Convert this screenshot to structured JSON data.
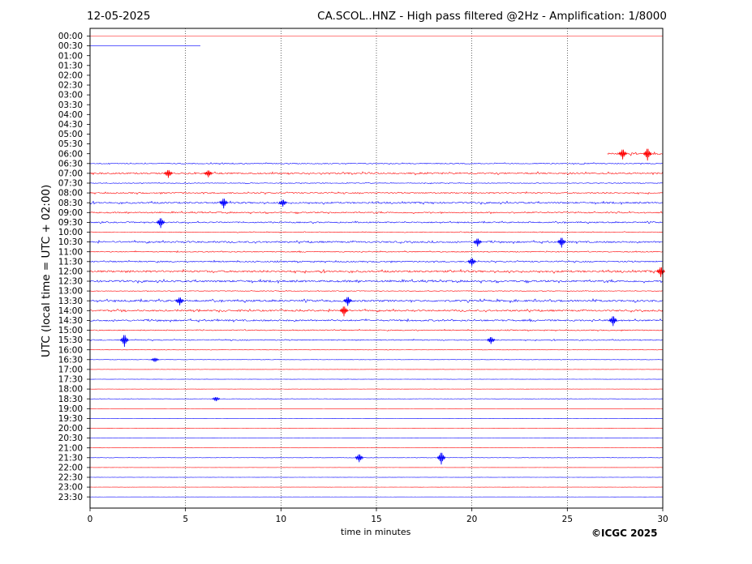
{
  "header": {
    "date": "12-05-2025",
    "title": "CA.SCOL..HNZ - High pass filtered @2Hz - Amplification: 1/8000"
  },
  "footer": {
    "copyright": "©ICGC 2025"
  },
  "colors": {
    "trace_a": "#ff0000",
    "trace_b": "#0000ff",
    "grid": "#000000"
  },
  "chart_data": {
    "type": "line",
    "title": "CA.SCOL..HNZ - High pass filtered @2Hz - Amplification: 1/8000",
    "xlabel": "time in minutes",
    "ylabel": "UTC (local time = UTC + 02:00)",
    "xlim": [
      0,
      30
    ],
    "x_ticks": [
      0,
      5,
      10,
      15,
      20,
      25,
      30
    ],
    "vertical_grid_minutes": [
      5,
      10,
      15,
      20,
      25
    ],
    "rows": [
      {
        "label": "00:00",
        "color": "red",
        "start": 0,
        "end": 30,
        "level": 0.0
      },
      {
        "label": "00:30",
        "color": "blue",
        "start": 0,
        "end": 5.8,
        "level": 0.0
      },
      {
        "label": "01:00",
        "color": "red",
        "start": null,
        "end": null,
        "level": 0
      },
      {
        "label": "01:30",
        "color": "blue",
        "start": null,
        "end": null,
        "level": 0
      },
      {
        "label": "02:00",
        "color": "red",
        "start": null,
        "end": null,
        "level": 0
      },
      {
        "label": "02:30",
        "color": "blue",
        "start": null,
        "end": null,
        "level": 0
      },
      {
        "label": "03:00",
        "color": "red",
        "start": null,
        "end": null,
        "level": 0
      },
      {
        "label": "03:30",
        "color": "blue",
        "start": null,
        "end": null,
        "level": 0
      },
      {
        "label": "04:00",
        "color": "red",
        "start": null,
        "end": null,
        "level": 0
      },
      {
        "label": "04:30",
        "color": "blue",
        "start": null,
        "end": null,
        "level": 0
      },
      {
        "label": "05:00",
        "color": "red",
        "start": null,
        "end": null,
        "level": 0
      },
      {
        "label": "05:30",
        "color": "blue",
        "start": null,
        "end": null,
        "level": 0
      },
      {
        "label": "06:00",
        "color": "red",
        "start": 27.1,
        "end": 30,
        "level": 0.6
      },
      {
        "label": "06:30",
        "color": "blue",
        "start": 0,
        "end": 30,
        "level": 0.3
      },
      {
        "label": "07:00",
        "color": "red",
        "start": 0,
        "end": 30,
        "level": 0.5
      },
      {
        "label": "07:30",
        "color": "blue",
        "start": 0,
        "end": 30,
        "level": 0.2
      },
      {
        "label": "08:00",
        "color": "red",
        "start": 0,
        "end": 30,
        "level": 0.4
      },
      {
        "label": "08:30",
        "color": "blue",
        "start": 0,
        "end": 30,
        "level": 0.5
      },
      {
        "label": "09:00",
        "color": "red",
        "start": 0,
        "end": 30,
        "level": 0.4
      },
      {
        "label": "09:30",
        "color": "blue",
        "start": 0,
        "end": 30,
        "level": 0.4
      },
      {
        "label": "10:00",
        "color": "red",
        "start": 0,
        "end": 30,
        "level": 0.2
      },
      {
        "label": "10:30",
        "color": "blue",
        "start": 0,
        "end": 30,
        "level": 0.5
      },
      {
        "label": "11:00",
        "color": "red",
        "start": 0,
        "end": 30,
        "level": 0.3
      },
      {
        "label": "11:30",
        "color": "blue",
        "start": 0,
        "end": 30,
        "level": 0.4
      },
      {
        "label": "12:00",
        "color": "red",
        "start": 0,
        "end": 30,
        "level": 0.6
      },
      {
        "label": "12:30",
        "color": "blue",
        "start": 0,
        "end": 30,
        "level": 0.6
      },
      {
        "label": "13:00",
        "color": "red",
        "start": 0,
        "end": 30,
        "level": 0.2
      },
      {
        "label": "13:30",
        "color": "blue",
        "start": 0,
        "end": 30,
        "level": 0.6
      },
      {
        "label": "14:00",
        "color": "red",
        "start": 0,
        "end": 30,
        "level": 0.5
      },
      {
        "label": "14:30",
        "color": "blue",
        "start": 0,
        "end": 30,
        "level": 0.5
      },
      {
        "label": "15:00",
        "color": "red",
        "start": 0,
        "end": 30,
        "level": 0.3
      },
      {
        "label": "15:30",
        "color": "blue",
        "start": 0,
        "end": 30,
        "level": 0.3
      },
      {
        "label": "16:00",
        "color": "red",
        "start": 0,
        "end": 30,
        "level": 0.1
      },
      {
        "label": "16:30",
        "color": "blue",
        "start": 0,
        "end": 30,
        "level": 0.1
      },
      {
        "label": "17:00",
        "color": "red",
        "start": 0,
        "end": 30,
        "level": 0.05
      },
      {
        "label": "17:30",
        "color": "blue",
        "start": 0,
        "end": 30,
        "level": 0.05
      },
      {
        "label": "18:00",
        "color": "red",
        "start": 0,
        "end": 30,
        "level": 0.05
      },
      {
        "label": "18:30",
        "color": "blue",
        "start": 0,
        "end": 30,
        "level": 0.1
      },
      {
        "label": "19:00",
        "color": "red",
        "start": 0,
        "end": 30,
        "level": 0.03
      },
      {
        "label": "19:30",
        "color": "blue",
        "start": 0,
        "end": 30,
        "level": 0.03
      },
      {
        "label": "20:00",
        "color": "red",
        "start": 0,
        "end": 30,
        "level": 0.03
      },
      {
        "label": "20:30",
        "color": "blue",
        "start": 0,
        "end": 30,
        "level": 0.03
      },
      {
        "label": "21:00",
        "color": "red",
        "start": 0,
        "end": 30,
        "level": 0.03
      },
      {
        "label": "21:30",
        "color": "blue",
        "start": 0,
        "end": 30,
        "level": 0.1
      },
      {
        "label": "22:00",
        "color": "red",
        "start": 0,
        "end": 30,
        "level": 0.03
      },
      {
        "label": "22:30",
        "color": "blue",
        "start": 0,
        "end": 30,
        "level": 0.03
      },
      {
        "label": "23:00",
        "color": "red",
        "start": 0,
        "end": 30,
        "level": 0.03
      },
      {
        "label": "23:30",
        "color": "blue",
        "start": 0,
        "end": 30,
        "level": 0.03
      }
    ],
    "events": [
      {
        "row": "06:00",
        "minute": 27.9,
        "amp": 1.0
      },
      {
        "row": "06:00",
        "minute": 29.2,
        "amp": 1.2
      },
      {
        "row": "07:00",
        "minute": 4.1,
        "amp": 0.8
      },
      {
        "row": "07:00",
        "minute": 6.2,
        "amp": 0.7
      },
      {
        "row": "08:30",
        "minute": 7.0,
        "amp": 1.0
      },
      {
        "row": "08:30",
        "minute": 10.1,
        "amp": 0.7
      },
      {
        "row": "09:30",
        "minute": 3.7,
        "amp": 1.0
      },
      {
        "row": "10:30",
        "minute": 20.3,
        "amp": 0.8
      },
      {
        "row": "10:30",
        "minute": 24.7,
        "amp": 1.0
      },
      {
        "row": "11:30",
        "minute": 20.0,
        "amp": 0.8
      },
      {
        "row": "12:00",
        "minute": 29.9,
        "amp": 1.0
      },
      {
        "row": "13:30",
        "minute": 4.7,
        "amp": 0.8
      },
      {
        "row": "13:30",
        "minute": 13.5,
        "amp": 0.9
      },
      {
        "row": "14:00",
        "minute": 13.3,
        "amp": 1.0
      },
      {
        "row": "14:30",
        "minute": 27.4,
        "amp": 1.0
      },
      {
        "row": "15:30",
        "minute": 1.8,
        "amp": 1.2
      },
      {
        "row": "15:30",
        "minute": 21.0,
        "amp": 0.7
      },
      {
        "row": "16:30",
        "minute": 3.4,
        "amp": 0.4
      },
      {
        "row": "18:30",
        "minute": 6.6,
        "amp": 0.4
      },
      {
        "row": "21:30",
        "minute": 14.1,
        "amp": 0.8
      },
      {
        "row": "21:30",
        "minute": 18.4,
        "amp": 1.2
      }
    ]
  }
}
